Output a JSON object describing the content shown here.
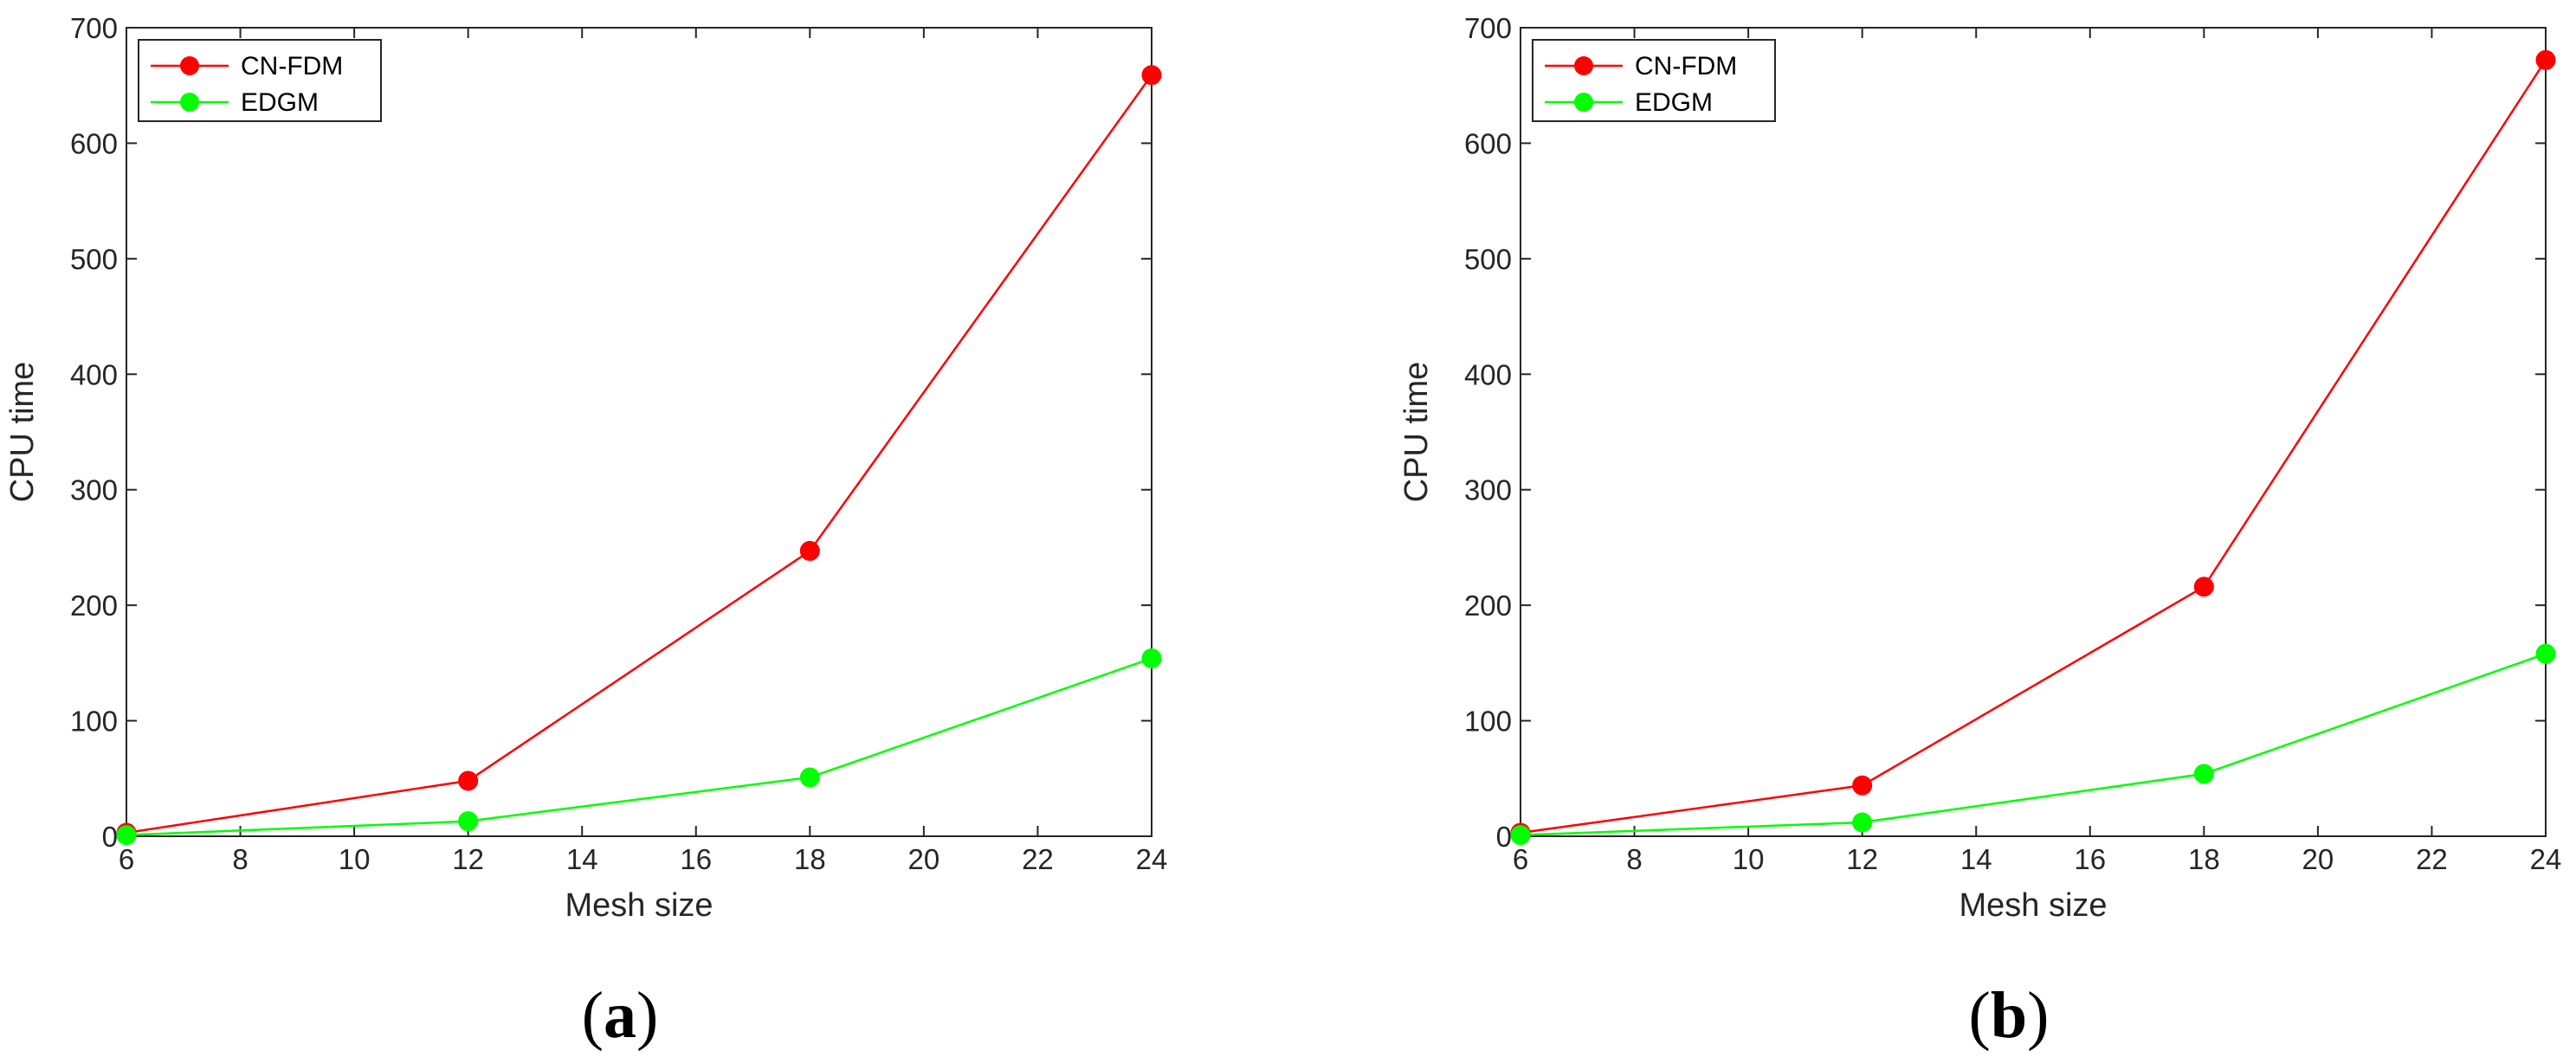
{
  "chart_data": [
    {
      "type": "line",
      "caption": {
        "open": "(",
        "letter": "a",
        "close": ")"
      },
      "xlabel": "Mesh size",
      "ylabel": "CPU time",
      "xlim": [
        6,
        24
      ],
      "ylim": [
        0,
        700
      ],
      "xticks": [
        6,
        8,
        10,
        12,
        14,
        16,
        18,
        20,
        22,
        24
      ],
      "yticks": [
        0,
        100,
        200,
        300,
        400,
        500,
        600,
        700
      ],
      "grid": false,
      "legend": "top-left",
      "x": [
        6,
        12,
        18,
        24
      ],
      "series": [
        {
          "name": "CN-FDM",
          "color": "#ff0000",
          "values": [
            3,
            48,
            247,
            659
          ]
        },
        {
          "name": "EDGM",
          "color": "#00ff00",
          "values": [
            1,
            13,
            51,
            154
          ]
        }
      ]
    },
    {
      "type": "line",
      "caption": {
        "open": "(",
        "letter": "b",
        "close": ")"
      },
      "xlabel": "Mesh size",
      "ylabel": "CPU time",
      "xlim": [
        6,
        24
      ],
      "ylim": [
        0,
        700
      ],
      "xticks": [
        6,
        8,
        10,
        12,
        14,
        16,
        18,
        20,
        22,
        24
      ],
      "yticks": [
        0,
        100,
        200,
        300,
        400,
        500,
        600,
        700
      ],
      "grid": false,
      "legend": "top-left",
      "x": [
        6,
        12,
        18,
        24
      ],
      "series": [
        {
          "name": "CN-FDM",
          "color": "#ff0000",
          "values": [
            3,
            44,
            216,
            672
          ]
        },
        {
          "name": "EDGM",
          "color": "#00ff00",
          "values": [
            1,
            12,
            54,
            158
          ]
        }
      ]
    }
  ]
}
